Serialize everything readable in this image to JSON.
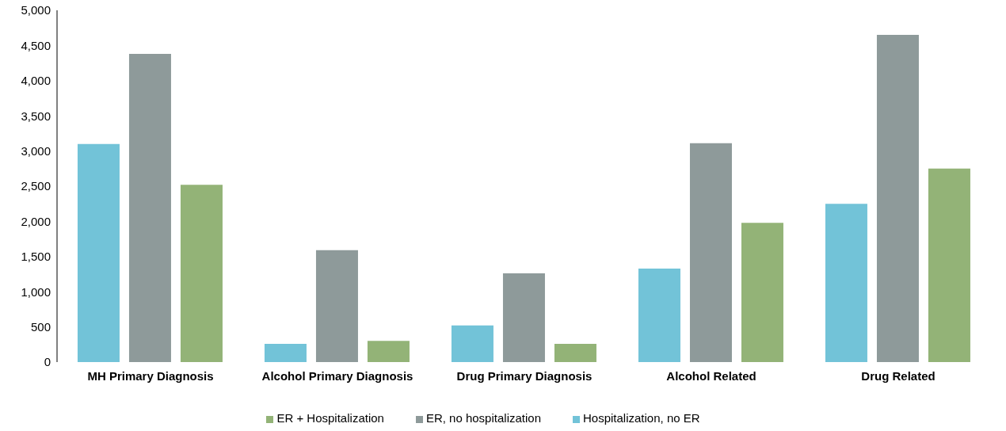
{
  "chart_data": {
    "type": "bar",
    "categories": [
      "MH Primary Diagnosis",
      "Alcohol Primary Diagnosis",
      "Drug Primary Diagnosis",
      "Alcohol Related",
      "Drug Related"
    ],
    "series": [
      {
        "name": "Hospitalization, no ER",
        "color": "#72c3d8",
        "values": [
          3100,
          260,
          520,
          1330,
          2250
        ]
      },
      {
        "name": "ER, no hospitalization",
        "color": "#8e9a9a",
        "values": [
          4380,
          1590,
          1260,
          3110,
          4650
        ]
      },
      {
        "name": "ER + Hospitalization",
        "color": "#93b377",
        "values": [
          2520,
          300,
          260,
          1980,
          2750
        ]
      }
    ],
    "ylim": [
      0,
      5000
    ],
    "yticks": [
      {
        "value": 0,
        "label": "0"
      },
      {
        "value": 500,
        "label": "500"
      },
      {
        "value": 1000,
        "label": "1,000"
      },
      {
        "value": 1500,
        "label": "1,500"
      },
      {
        "value": 2000,
        "label": "2,000"
      },
      {
        "value": 2500,
        "label": "2,500"
      },
      {
        "value": 3000,
        "label": "3,000"
      },
      {
        "value": 3500,
        "label": "3,500"
      },
      {
        "value": 4000,
        "label": "4,000"
      },
      {
        "value": 4500,
        "label": "4,500"
      },
      {
        "value": 5000,
        "label": "5,000"
      }
    ],
    "grid": false,
    "legend": "bottom"
  }
}
